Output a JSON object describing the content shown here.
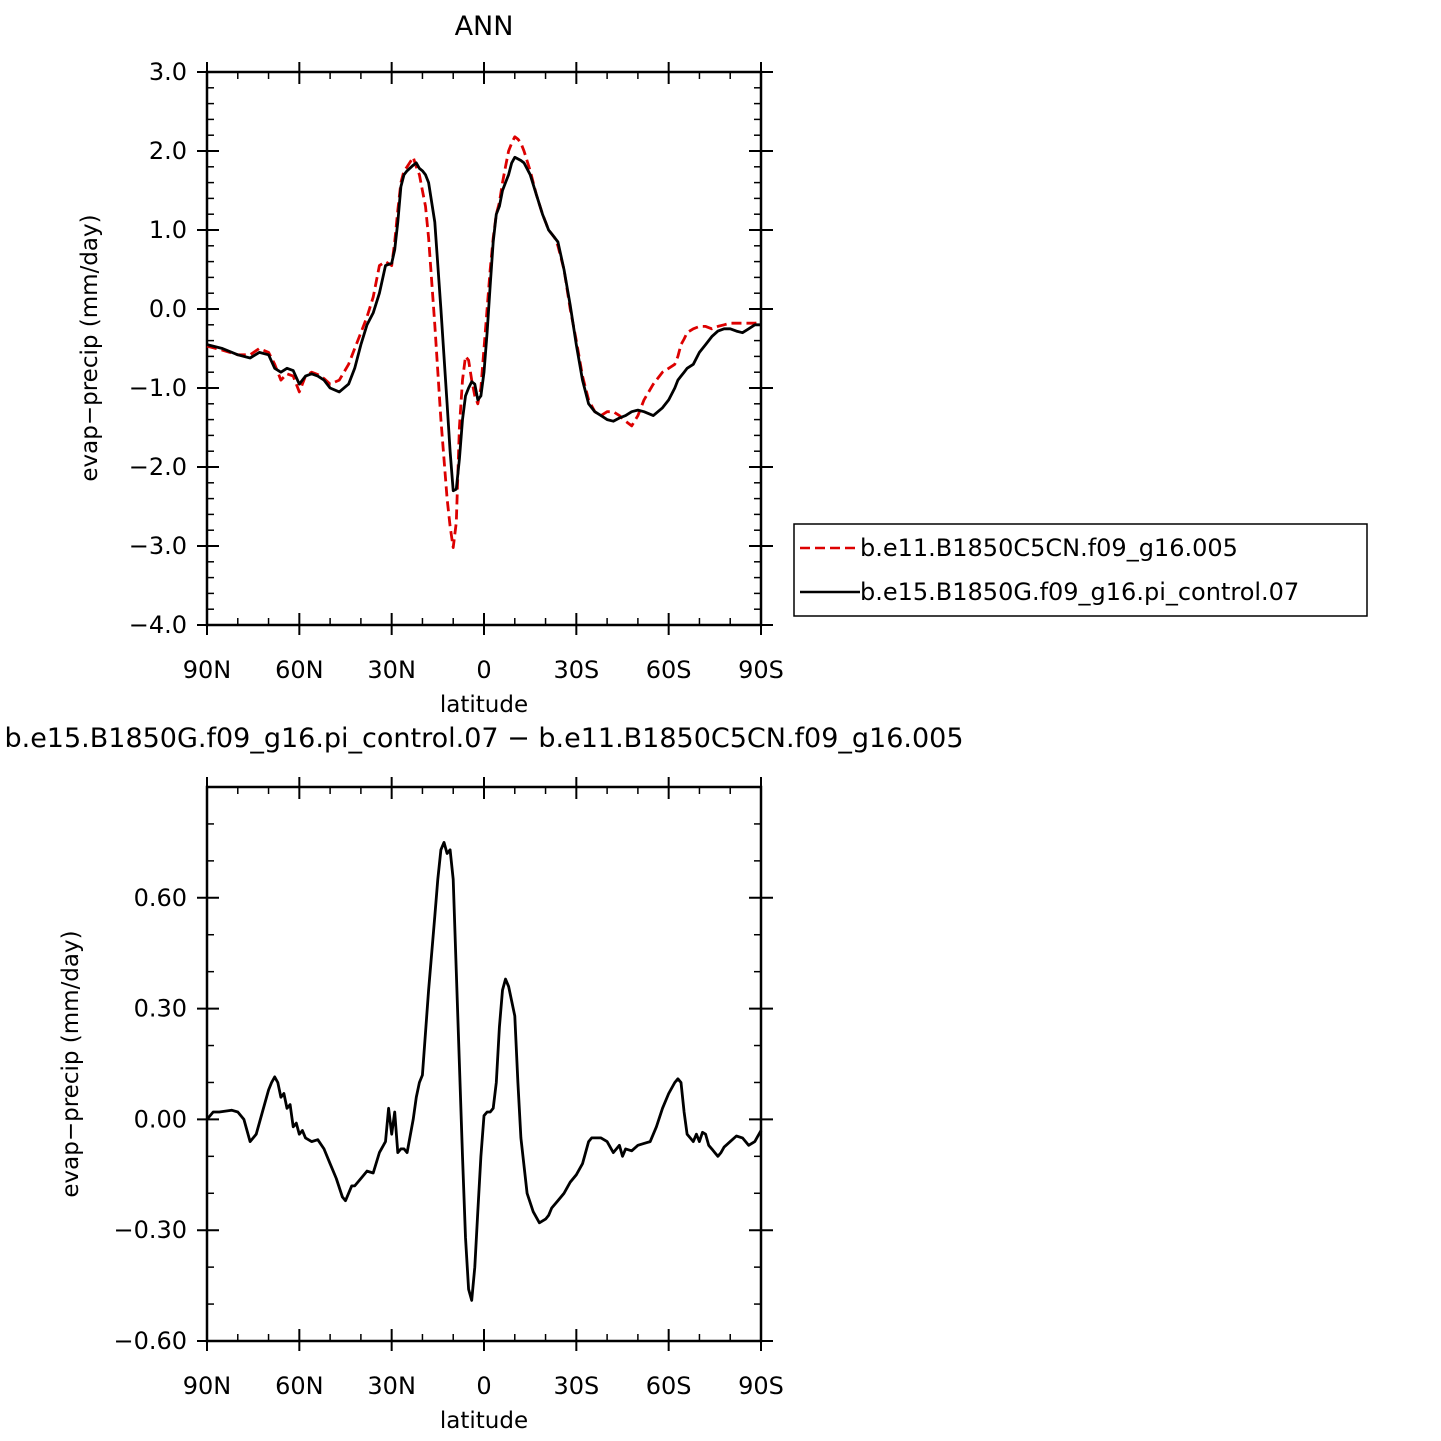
{
  "chart_data": [
    {
      "type": "line",
      "title": "ANN",
      "xlabel": "latitude",
      "ylabel": "evap−precip (mm/day)",
      "xlim": [
        90,
        -90
      ],
      "ylim": [
        -4,
        3
      ],
      "x_ticks": [
        90,
        60,
        30,
        0,
        -30,
        -60,
        -90
      ],
      "x_tick_labels": [
        "90N",
        "60N",
        "30N",
        "0",
        "30S",
        "60S",
        "90S"
      ],
      "y_ticks": [
        -4,
        -3,
        -2,
        -1,
        0,
        1,
        2,
        3
      ],
      "y_tick_labels": [
        "−4.0",
        "−3.0",
        "−2.0",
        "−1.0",
        "0.0",
        "1.0",
        "2.0",
        "3.0"
      ],
      "x_minor_step": 10,
      "y_minor_step": 0.2,
      "legend_position": "right",
      "series": [
        {
          "name": "b.e11.B1850C5CN.f09_g16.005",
          "color": "#dd0000",
          "dash": "dashed",
          "x": [
            90,
            85,
            80,
            76,
            73,
            70,
            68,
            66,
            64,
            62,
            60,
            58,
            56,
            54,
            52,
            50,
            47,
            44,
            42,
            40,
            38,
            36,
            34,
            32,
            30,
            29,
            28,
            27,
            26,
            25,
            23,
            22,
            21,
            20,
            19,
            18,
            16,
            14,
            12,
            11,
            10,
            9,
            8,
            7,
            6,
            5,
            4,
            3,
            2,
            1,
            0,
            -1,
            -2,
            -3,
            -4,
            -5,
            -6,
            -7,
            -8,
            -9,
            -10,
            -11,
            -12,
            -13,
            -15,
            -17,
            -19,
            -20,
            -21,
            -22,
            -23,
            -24,
            -26,
            -28,
            -30,
            -32,
            -34,
            -36,
            -38,
            -40,
            -42,
            -44,
            -46,
            -48,
            -50,
            -52,
            -55,
            -58,
            -60,
            -62,
            -63,
            -64,
            -65,
            -66,
            -68,
            -70,
            -72,
            -74,
            -76,
            -78,
            -80,
            -82,
            -84,
            -86,
            -88,
            -90
          ],
          "y": [
            -0.47,
            -0.52,
            -0.58,
            -0.58,
            -0.5,
            -0.55,
            -0.7,
            -0.9,
            -0.82,
            -0.85,
            -1.05,
            -0.85,
            -0.8,
            -0.83,
            -0.88,
            -0.95,
            -0.9,
            -0.7,
            -0.5,
            -0.3,
            -0.1,
            0.15,
            0.55,
            0.6,
            0.55,
            0.85,
            1.25,
            1.6,
            1.75,
            1.8,
            1.92,
            1.8,
            1.7,
            1.5,
            1.3,
            0.9,
            -0.2,
            -1.4,
            -2.4,
            -2.75,
            -3.02,
            -2.7,
            -1.5,
            -0.9,
            -0.6,
            -0.65,
            -0.9,
            -1.1,
            -1.2,
            -1.0,
            -0.5,
            0.0,
            0.5,
            0.9,
            1.2,
            1.35,
            1.6,
            1.8,
            2.0,
            2.1,
            2.18,
            2.15,
            2.1,
            2.0,
            1.75,
            1.45,
            1.2,
            1.1,
            1.0,
            0.95,
            0.9,
            0.8,
            0.5,
            0.0,
            -0.4,
            -0.85,
            -1.15,
            -1.3,
            -1.35,
            -1.3,
            -1.3,
            -1.35,
            -1.42,
            -1.48,
            -1.35,
            -1.15,
            -0.95,
            -0.8,
            -0.75,
            -0.7,
            -0.6,
            -0.45,
            -0.38,
            -0.3,
            -0.25,
            -0.22,
            -0.22,
            -0.25,
            -0.22,
            -0.2,
            -0.18,
            -0.18,
            -0.18,
            -0.18,
            -0.18,
            -0.17
          ]
        },
        {
          "name": "b.e15.B1850G.f09_g16.pi_control.07",
          "color": "#000000",
          "dash": "solid",
          "x": [
            90,
            85,
            80,
            76,
            73,
            70,
            68,
            66,
            64,
            62,
            60,
            58,
            56,
            54,
            52,
            50,
            47,
            44,
            42,
            40,
            38,
            36,
            34,
            32,
            30,
            29,
            28,
            27,
            26,
            25,
            23,
            22,
            21,
            20,
            19,
            18,
            16,
            14,
            12,
            11,
            10,
            9,
            8,
            7,
            6,
            5,
            4,
            3,
            2,
            1,
            0,
            -1,
            -2,
            -3,
            -4,
            -5,
            -6,
            -7,
            -8,
            -9,
            -10,
            -11,
            -12,
            -13,
            -15,
            -17,
            -19,
            -20,
            -21,
            -22,
            -23,
            -24,
            -26,
            -28,
            -30,
            -32,
            -34,
            -36,
            -38,
            -40,
            -42,
            -44,
            -46,
            -48,
            -50,
            -52,
            -55,
            -58,
            -60,
            -62,
            -63,
            -64,
            -65,
            -66,
            -68,
            -70,
            -72,
            -74,
            -76,
            -78,
            -80,
            -82,
            -84,
            -86,
            -88,
            -90
          ],
          "y": [
            -0.45,
            -0.5,
            -0.58,
            -0.62,
            -0.55,
            -0.58,
            -0.75,
            -0.8,
            -0.75,
            -0.78,
            -0.95,
            -0.85,
            -0.82,
            -0.85,
            -0.9,
            -1.0,
            -1.05,
            -0.95,
            -0.75,
            -0.45,
            -0.2,
            -0.05,
            0.2,
            0.55,
            0.58,
            0.75,
            1.1,
            1.55,
            1.7,
            1.75,
            1.82,
            1.85,
            1.78,
            1.75,
            1.7,
            1.6,
            1.1,
            0.0,
            -1.2,
            -1.8,
            -2.3,
            -2.28,
            -1.9,
            -1.4,
            -1.1,
            -1.0,
            -0.92,
            -0.95,
            -1.15,
            -1.1,
            -0.8,
            -0.3,
            0.3,
            0.85,
            1.2,
            1.3,
            1.5,
            1.6,
            1.7,
            1.85,
            1.92,
            1.9,
            1.88,
            1.85,
            1.7,
            1.45,
            1.2,
            1.1,
            1.0,
            0.95,
            0.9,
            0.85,
            0.5,
            0.05,
            -0.45,
            -0.9,
            -1.2,
            -1.3,
            -1.35,
            -1.4,
            -1.42,
            -1.38,
            -1.35,
            -1.3,
            -1.28,
            -1.3,
            -1.35,
            -1.25,
            -1.15,
            -1.0,
            -0.9,
            -0.85,
            -0.8,
            -0.75,
            -0.7,
            -0.55,
            -0.45,
            -0.35,
            -0.28,
            -0.25,
            -0.25,
            -0.28,
            -0.3,
            -0.25,
            -0.2,
            -0.2
          ]
        }
      ]
    },
    {
      "type": "line",
      "title": "b.e15.B1850G.f09_g16.pi_control.07 − b.e11.B1850C5CN.f09_g16.005",
      "xlabel": "latitude",
      "ylabel": "evap−precip (mm/day)",
      "xlim": [
        90,
        -90
      ],
      "ylim": [
        -0.6,
        0.9
      ],
      "x_ticks": [
        90,
        60,
        30,
        0,
        -30,
        -60,
        -90
      ],
      "x_tick_labels": [
        "90N",
        "60N",
        "30N",
        "0",
        "30S",
        "60S",
        "90S"
      ],
      "y_ticks": [
        -0.6,
        -0.3,
        0.0,
        0.3,
        0.6
      ],
      "y_tick_labels": [
        "−0.60",
        "−0.30",
        "0.00",
        "0.30",
        "0.60"
      ],
      "x_minor_step": 10,
      "y_minor_step": 0.1,
      "series": [
        {
          "name": "",
          "color": "#000000",
          "dash": "solid",
          "x": [
            90,
            88,
            86,
            82,
            80,
            78,
            76,
            74,
            72,
            70,
            69,
            68,
            67,
            66,
            65,
            64,
            63,
            62,
            61,
            60,
            59,
            58,
            56,
            54,
            52,
            50,
            48,
            46,
            45,
            44,
            43,
            42,
            40,
            38,
            36,
            34,
            32,
            31,
            30,
            29,
            28,
            27,
            26,
            25,
            23,
            22,
            21,
            20,
            18,
            16,
            15,
            14,
            13,
            12,
            11,
            10,
            9,
            8,
            7,
            6,
            5,
            4,
            3,
            2,
            1,
            0,
            -1,
            -2,
            -3,
            -4,
            -5,
            -6,
            -7,
            -8,
            -9,
            -10,
            -11,
            -12,
            -14,
            -16,
            -18,
            -20,
            -21,
            -22,
            -24,
            -26,
            -28,
            -30,
            -32,
            -34,
            -35,
            -36,
            -38,
            -40,
            -42,
            -44,
            -45,
            -46,
            -48,
            -50,
            -52,
            -54,
            -56,
            -58,
            -60,
            -62,
            -63,
            -64,
            -65,
            -66,
            -67,
            -68,
            -69,
            -70,
            -71,
            -72,
            -73,
            -74,
            -75,
            -76,
            -77,
            -78,
            -80,
            -82,
            -84,
            -86,
            -88,
            -90
          ],
          "y": [
            0.0,
            0.02,
            0.02,
            0.025,
            0.02,
            0.0,
            -0.06,
            -0.04,
            0.02,
            0.08,
            0.1,
            0.115,
            0.1,
            0.06,
            0.07,
            0.03,
            0.04,
            -0.02,
            -0.01,
            -0.04,
            -0.03,
            -0.05,
            -0.06,
            -0.055,
            -0.08,
            -0.12,
            -0.16,
            -0.21,
            -0.22,
            -0.2,
            -0.18,
            -0.18,
            -0.16,
            -0.14,
            -0.145,
            -0.09,
            -0.06,
            0.03,
            -0.04,
            0.02,
            -0.09,
            -0.08,
            -0.08,
            -0.09,
            0.0,
            0.06,
            0.1,
            0.12,
            0.35,
            0.55,
            0.65,
            0.73,
            0.75,
            0.72,
            0.73,
            0.65,
            0.4,
            0.15,
            -0.1,
            -0.32,
            -0.46,
            -0.49,
            -0.4,
            -0.25,
            -0.1,
            0.01,
            0.02,
            0.02,
            0.03,
            0.1,
            0.25,
            0.35,
            0.38,
            0.36,
            0.32,
            0.28,
            0.1,
            -0.05,
            -0.2,
            -0.25,
            -0.28,
            -0.27,
            -0.26,
            -0.24,
            -0.22,
            -0.2,
            -0.17,
            -0.15,
            -0.12,
            -0.06,
            -0.05,
            -0.05,
            -0.05,
            -0.06,
            -0.09,
            -0.07,
            -0.1,
            -0.08,
            -0.085,
            -0.07,
            -0.065,
            -0.06,
            -0.02,
            0.03,
            0.07,
            0.1,
            0.11,
            0.1,
            0.02,
            -0.04,
            -0.05,
            -0.06,
            -0.04,
            -0.06,
            -0.035,
            -0.04,
            -0.07,
            -0.08,
            -0.09,
            -0.1,
            -0.09,
            -0.075,
            -0.06,
            -0.045,
            -0.05,
            -0.07,
            -0.06,
            -0.03
          ]
        }
      ]
    }
  ]
}
